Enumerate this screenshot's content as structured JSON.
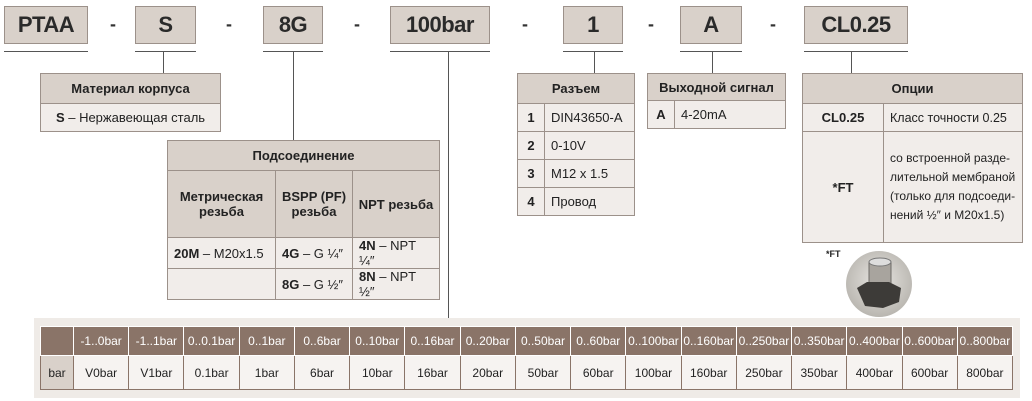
{
  "code": {
    "parts": [
      "PTAA",
      "S",
      "8G",
      "100bar",
      "1",
      "A",
      "CL0.25"
    ],
    "separator": "-"
  },
  "material": {
    "title": "Материал корпуса",
    "key": "S",
    "value": " – Нержавеющая сталь"
  },
  "connection": {
    "title": "Подсоединение",
    "columns": [
      "Метрическая резьба",
      "BSPP (PF) резьба",
      "NPT резьба"
    ],
    "rows": [
      [
        {
          "k": "20M",
          "v": " – M20x1.5"
        },
        {
          "k": "4G",
          "v": " – G ¼″"
        },
        {
          "k": "4N",
          "v": " – NPT ¼″"
        }
      ],
      [
        {
          "k": "",
          "v": ""
        },
        {
          "k": "8G",
          "v": " – G ½″"
        },
        {
          "k": "8N",
          "v": " – NPT ½″"
        }
      ]
    ]
  },
  "connector": {
    "title": "Разъем",
    "rows": [
      {
        "k": "1",
        "v": "DIN43650-A"
      },
      {
        "k": "2",
        "v": "0-10V"
      },
      {
        "k": "3",
        "v": "M12 x 1.5"
      },
      {
        "k": "4",
        "v": "Провод"
      }
    ]
  },
  "output": {
    "title": "Выходной сигнал",
    "rows": [
      {
        "k": "A",
        "v": "4-20mA"
      }
    ]
  },
  "options": {
    "title": "Опции",
    "rows": [
      {
        "k": "CL0.25",
        "v": "Класс точности 0.25"
      },
      {
        "k": "*FT",
        "v": "со встроенной разде-лительной мембраной (только для подсоеди-нений ½″ и M20x1.5)"
      }
    ],
    "image_label": "*FT"
  },
  "ranges": {
    "row_label": "bar",
    "headers": [
      "-1..0bar",
      "-1..1bar",
      "0..0.1bar",
      "0..1bar",
      "0..6bar",
      "0..10bar",
      "0..16bar",
      "0..20bar",
      "0..50bar",
      "0..60bar",
      "0..100bar",
      "0..160bar",
      "0..250bar",
      "0..350bar",
      "0..400bar",
      "0..600bar",
      "0..800bar"
    ],
    "codes": [
      "V0bar",
      "V1bar",
      "0.1bar",
      "1bar",
      "6bar",
      "10bar",
      "16bar",
      "20bar",
      "50bar",
      "60bar",
      "100bar",
      "160bar",
      "250bar",
      "350bar",
      "400bar",
      "600bar",
      "800bar"
    ]
  },
  "colors": {
    "header": "#d9d1ca",
    "cell": "#f1edea",
    "dark_header": "#8a7468",
    "border": "#9c918a"
  }
}
